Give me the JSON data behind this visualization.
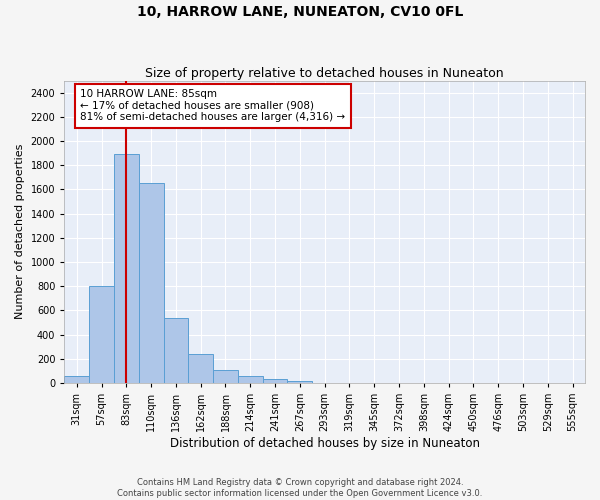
{
  "title": "10, HARROW LANE, NUNEATON, CV10 0FL",
  "subtitle": "Size of property relative to detached houses in Nuneaton",
  "xlabel": "Distribution of detached houses by size in Nuneaton",
  "ylabel": "Number of detached properties",
  "categories": [
    "31sqm",
    "57sqm",
    "83sqm",
    "110sqm",
    "136sqm",
    "162sqm",
    "188sqm",
    "214sqm",
    "241sqm",
    "267sqm",
    "293sqm",
    "319sqm",
    "345sqm",
    "372sqm",
    "398sqm",
    "424sqm",
    "450sqm",
    "476sqm",
    "503sqm",
    "529sqm",
    "555sqm"
  ],
  "values": [
    55,
    800,
    1890,
    1650,
    535,
    240,
    108,
    55,
    35,
    18,
    0,
    0,
    0,
    0,
    0,
    0,
    0,
    0,
    0,
    0,
    0
  ],
  "bar_color": "#aec6e8",
  "bar_edge_color": "#5a9fd4",
  "vline_x_idx": 2,
  "vline_color": "#cc0000",
  "annotation_text": "10 HARROW LANE: 85sqm\n← 17% of detached houses are smaller (908)\n81% of semi-detached houses are larger (4,316) →",
  "annotation_box_color": "#cc0000",
  "ylim": [
    0,
    2500
  ],
  "yticks": [
    0,
    200,
    400,
    600,
    800,
    1000,
    1200,
    1400,
    1600,
    1800,
    2000,
    2200,
    2400
  ],
  "background_color": "#e8eef8",
  "grid_color": "#ffffff",
  "footnote": "Contains HM Land Registry data © Crown copyright and database right 2024.\nContains public sector information licensed under the Open Government Licence v3.0.",
  "title_fontsize": 10,
  "subtitle_fontsize": 9,
  "xlabel_fontsize": 8.5,
  "ylabel_fontsize": 8,
  "tick_fontsize": 7,
  "annot_fontsize": 7.5
}
